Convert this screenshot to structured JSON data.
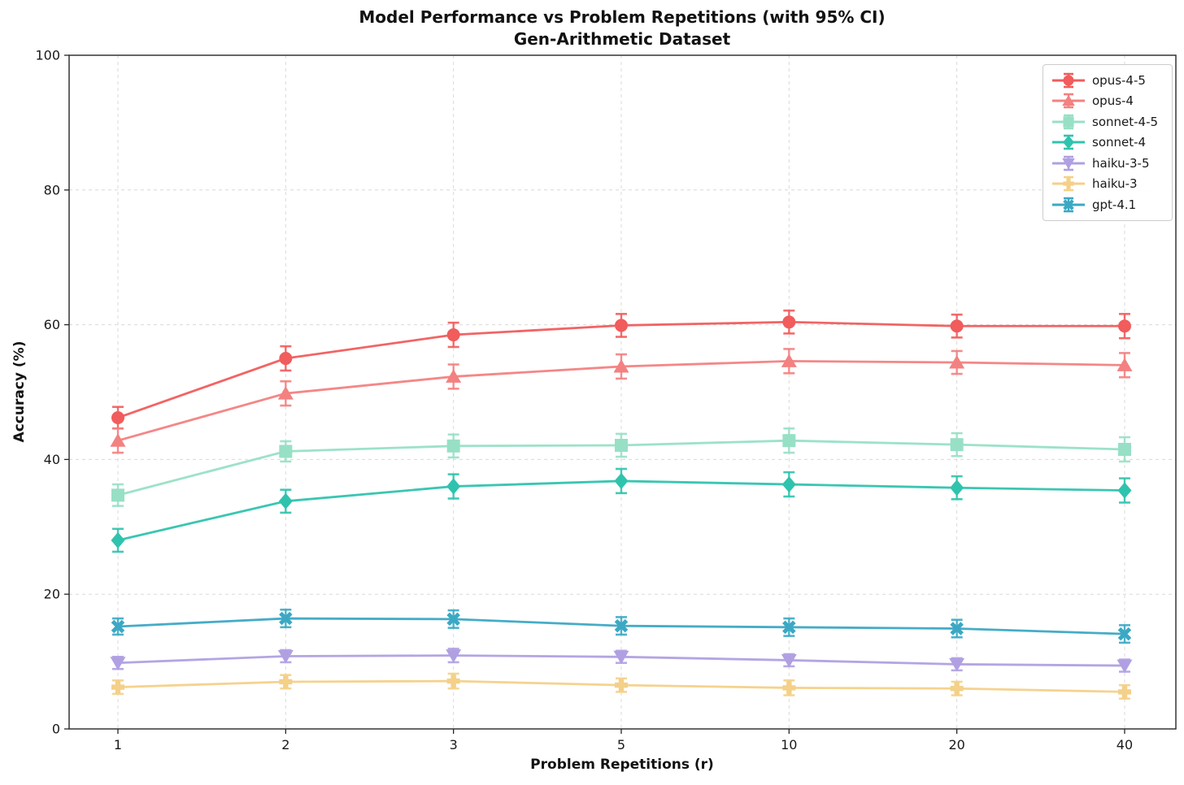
{
  "chart_data": {
    "type": "line",
    "title": "Model Performance vs Problem Repetitions (with 95% CI)",
    "subtitle": "Gen-Arithmetic Dataset",
    "xlabel": "Problem Repetitions (r)",
    "ylabel": "Accuracy (%)",
    "x_ticklabels": [
      "1",
      "2",
      "3",
      "5",
      "10",
      "20",
      "40"
    ],
    "y_ticklabels": [
      "0",
      "20",
      "40",
      "60",
      "80",
      "100"
    ],
    "y_ticks": [
      0,
      20,
      40,
      60,
      80,
      100
    ],
    "ylim": [
      0,
      100
    ],
    "grid": true,
    "error_bars": "95% CI",
    "legend_position": "upper right",
    "colors": {
      "grid": "#d9d9d9",
      "frame": "#262626",
      "text": "#121212"
    },
    "series": [
      {
        "name": "opus-4-5",
        "marker": "circle",
        "color": "#f15c5c",
        "values": [
          46.2,
          55.0,
          58.5,
          59.9,
          60.4,
          59.8,
          59.8
        ],
        "errors": [
          1.6,
          1.8,
          1.8,
          1.7,
          1.7,
          1.7,
          1.8
        ]
      },
      {
        "name": "opus-4",
        "marker": "triangle-up",
        "color": "#f38181",
        "values": [
          42.8,
          49.8,
          52.3,
          53.8,
          54.6,
          54.4,
          54.0
        ],
        "errors": [
          1.8,
          1.8,
          1.8,
          1.8,
          1.8,
          1.7,
          1.8
        ]
      },
      {
        "name": "sonnet-4-5",
        "marker": "square",
        "color": "#97e0c5",
        "values": [
          34.7,
          41.2,
          42.0,
          42.1,
          42.8,
          42.2,
          41.5
        ],
        "errors": [
          1.6,
          1.5,
          1.7,
          1.7,
          1.8,
          1.7,
          1.8
        ]
      },
      {
        "name": "sonnet-4",
        "marker": "diamond",
        "color": "#2fc3ae",
        "values": [
          28.0,
          33.8,
          36.0,
          36.8,
          36.3,
          35.8,
          35.4
        ],
        "errors": [
          1.7,
          1.7,
          1.8,
          1.8,
          1.8,
          1.7,
          1.8
        ]
      },
      {
        "name": "haiku-3-5",
        "marker": "triangle-down",
        "color": "#b0a0e2",
        "values": [
          9.8,
          10.8,
          10.9,
          10.7,
          10.2,
          9.6,
          9.4
        ],
        "errors": [
          0.9,
          0.9,
          1.0,
          0.9,
          0.9,
          0.9,
          0.9
        ]
      },
      {
        "name": "haiku-3",
        "marker": "plus",
        "color": "#f4d088",
        "values": [
          6.2,
          7.0,
          7.1,
          6.5,
          6.1,
          6.0,
          5.5
        ],
        "errors": [
          1.0,
          1.0,
          1.1,
          1.0,
          1.1,
          1.0,
          1.0
        ]
      },
      {
        "name": "gpt-4.1",
        "marker": "x",
        "color": "#3ba8c4",
        "values": [
          15.2,
          16.4,
          16.3,
          15.3,
          15.1,
          14.9,
          14.1
        ],
        "errors": [
          1.2,
          1.3,
          1.3,
          1.3,
          1.3,
          1.3,
          1.3
        ]
      }
    ]
  }
}
